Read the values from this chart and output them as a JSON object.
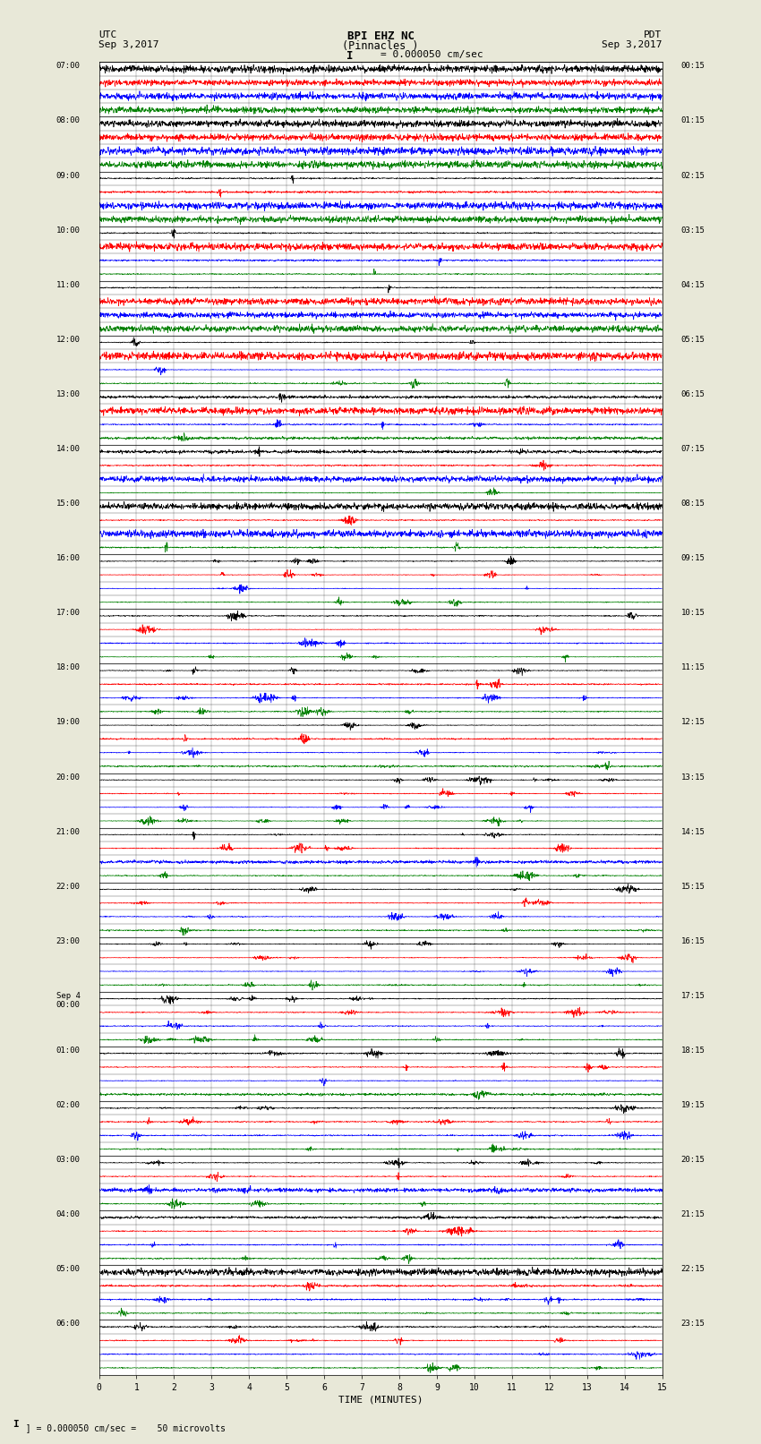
{
  "title_line1": "BPI EHZ NC",
  "title_line2": "(Pinnacles )",
  "scale_label": "I = 0.000050 cm/sec",
  "left_header1": "UTC",
  "left_header2": "Sep 3,2017",
  "right_header1": "PDT",
  "right_header2": "Sep 3,2017",
  "xlabel": "TIME (MINUTES)",
  "bottom_note": "= 0.000050 cm/sec =    50 microvolts",
  "utc_labels": [
    "07:00",
    "08:00",
    "09:00",
    "10:00",
    "11:00",
    "12:00",
    "13:00",
    "14:00",
    "15:00",
    "16:00",
    "17:00",
    "18:00",
    "19:00",
    "20:00",
    "21:00",
    "22:00",
    "23:00",
    "Sep 4\n00:00",
    "01:00",
    "02:00",
    "03:00",
    "04:00",
    "05:00",
    "06:00"
  ],
  "pdt_labels": [
    "00:15",
    "01:15",
    "02:15",
    "03:15",
    "04:15",
    "05:15",
    "06:15",
    "07:15",
    "08:15",
    "09:15",
    "10:15",
    "11:15",
    "12:15",
    "13:15",
    "14:15",
    "15:15",
    "16:15",
    "17:15",
    "18:15",
    "19:15",
    "20:15",
    "21:15",
    "22:15",
    "23:15"
  ],
  "num_rows": 96,
  "x_ticks": [
    0,
    1,
    2,
    3,
    4,
    5,
    6,
    7,
    8,
    9,
    10,
    11,
    12,
    13,
    14,
    15
  ],
  "colors_cycle": [
    "black",
    "red",
    "blue",
    "green"
  ],
  "background_color": "#e8e8d8",
  "plot_bg": "#ffffff",
  "line_width": 0.5
}
